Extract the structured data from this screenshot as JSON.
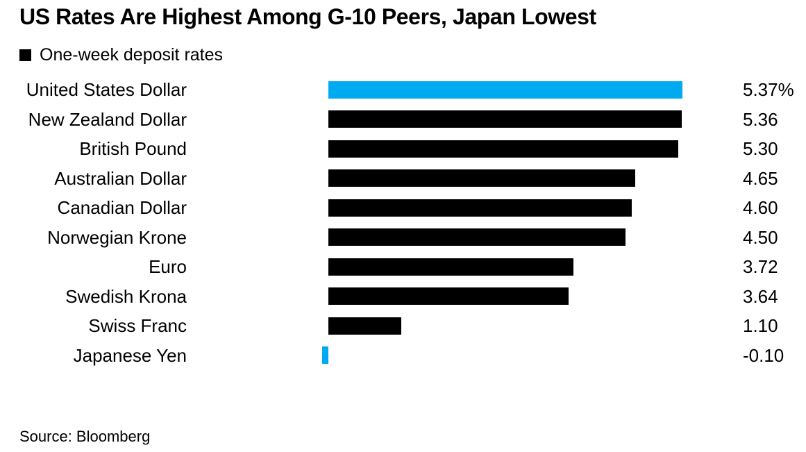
{
  "header": {
    "title": "US Rates Are Highest Among G-10 Peers, Japan Lowest",
    "legend_label": "One-week deposit rates"
  },
  "footer": {
    "source": "Source: Bloomberg"
  },
  "colors": {
    "highlight": "#00aaf0",
    "bar_default": "#000000",
    "legend_swatch": "#000000"
  },
  "chart_data": {
    "type": "bar",
    "orientation": "horizontal",
    "title": "US Rates Are Highest Among G-10 Peers, Japan Lowest",
    "legend": [
      "One-week deposit rates"
    ],
    "legend_position": "top-left",
    "grid": false,
    "unit": "%",
    "xlim": [
      -0.2,
      5.5
    ],
    "categories": [
      "United States Dollar",
      "New Zealand Dollar",
      "British Pound",
      "Australian Dollar",
      "Canadian Dollar",
      "Norwegian Krone",
      "Euro",
      "Swedish Krona",
      "Swiss Franc",
      "Japanese Yen"
    ],
    "values": [
      5.37,
      5.36,
      5.3,
      4.65,
      4.6,
      4.5,
      3.72,
      3.64,
      1.1,
      -0.1
    ],
    "rows": [
      {
        "label": "United States Dollar",
        "value": 5.37,
        "display": "5.37%",
        "highlight": true
      },
      {
        "label": "New Zealand Dollar",
        "value": 5.36,
        "display": "5.36",
        "highlight": false
      },
      {
        "label": "British Pound",
        "value": 5.3,
        "display": "5.30",
        "highlight": false
      },
      {
        "label": "Australian Dollar",
        "value": 4.65,
        "display": "4.65",
        "highlight": false
      },
      {
        "label": "Canadian Dollar",
        "value": 4.6,
        "display": "4.60",
        "highlight": false
      },
      {
        "label": "Norwegian Krone",
        "value": 4.5,
        "display": "4.50",
        "highlight": false
      },
      {
        "label": "Euro",
        "value": 3.72,
        "display": "3.72",
        "highlight": false
      },
      {
        "label": "Swedish Krona",
        "value": 3.64,
        "display": "3.64",
        "highlight": false
      },
      {
        "label": "Swiss Franc",
        "value": 1.1,
        "display": "1.10",
        "highlight": false
      },
      {
        "label": "Japanese Yen",
        "value": -0.1,
        "display": "-0.10",
        "highlight": true
      }
    ],
    "source": "Source: Bloomberg"
  }
}
